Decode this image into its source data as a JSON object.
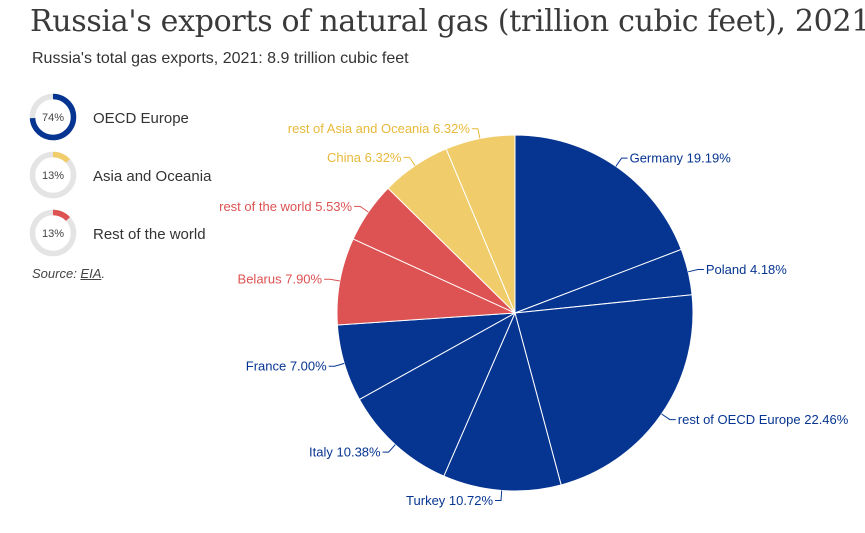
{
  "title": "Russia's exports of natural gas (trillion cubic feet), 2021",
  "subtitle": "Russia's total gas exports, 2021: 8.9 trillion cubic feet",
  "source": {
    "prefix": "Source: ",
    "link": "EIA",
    "suffix": "."
  },
  "colors": {
    "oecd": "#063591",
    "asia": "#f0cc6a",
    "rest": "#dd5252",
    "track": "#e4e4e4"
  },
  "legend": [
    {
      "label": "OECD Europe",
      "pct_text": "74%",
      "value": 74,
      "color": "#063591"
    },
    {
      "label": "Asia and Oceania",
      "pct_text": "13%",
      "value": 13,
      "color": "#f0cc6a"
    },
    {
      "label": "Rest of the world",
      "pct_text": "13%",
      "value": 13,
      "color": "#dd5252"
    }
  ],
  "chart_data": {
    "type": "pie",
    "title": "Russia's exports of natural gas (trillion cubic feet), 2021",
    "subtitle": "Russia's total gas exports, 2021: 8.9 trillion cubic feet",
    "slices": [
      {
        "label": "Germany 19.19%",
        "value": 19.19,
        "group": "OECD Europe",
        "color": "#063591",
        "label_color": "#063591"
      },
      {
        "label": "Poland 4.18%",
        "value": 4.18,
        "group": "OECD Europe",
        "color": "#063591",
        "label_color": "#063591"
      },
      {
        "label": "rest of OECD Europe 22.46%",
        "value": 22.46,
        "group": "OECD Europe",
        "color": "#063591",
        "label_color": "#063591"
      },
      {
        "label": "Turkey 10.72%",
        "value": 10.72,
        "group": "OECD Europe",
        "color": "#063591",
        "label_color": "#063591"
      },
      {
        "label": "Italy 10.38%",
        "value": 10.38,
        "group": "OECD Europe",
        "color": "#063591",
        "label_color": "#063591"
      },
      {
        "label": "France 7.00%",
        "value": 7.0,
        "group": "OECD Europe",
        "color": "#063591",
        "label_color": "#063591"
      },
      {
        "label": "Belarus 7.90%",
        "value": 7.9,
        "group": "Rest of the world",
        "color": "#dd5252",
        "label_color": "#dd5252"
      },
      {
        "label": "rest of the world 5.53%",
        "value": 5.53,
        "group": "Rest of the world",
        "color": "#dd5252",
        "label_color": "#dd5252"
      },
      {
        "label": "China 6.32%",
        "value": 6.32,
        "group": "Asia and Oceania",
        "color": "#f0cc6a",
        "label_color": "#e8b93a"
      },
      {
        "label": "rest of Asia and Oceania 6.32%",
        "value": 6.32,
        "group": "Asia and Oceania",
        "color": "#f0cc6a",
        "label_color": "#e8b93a"
      }
    ]
  }
}
